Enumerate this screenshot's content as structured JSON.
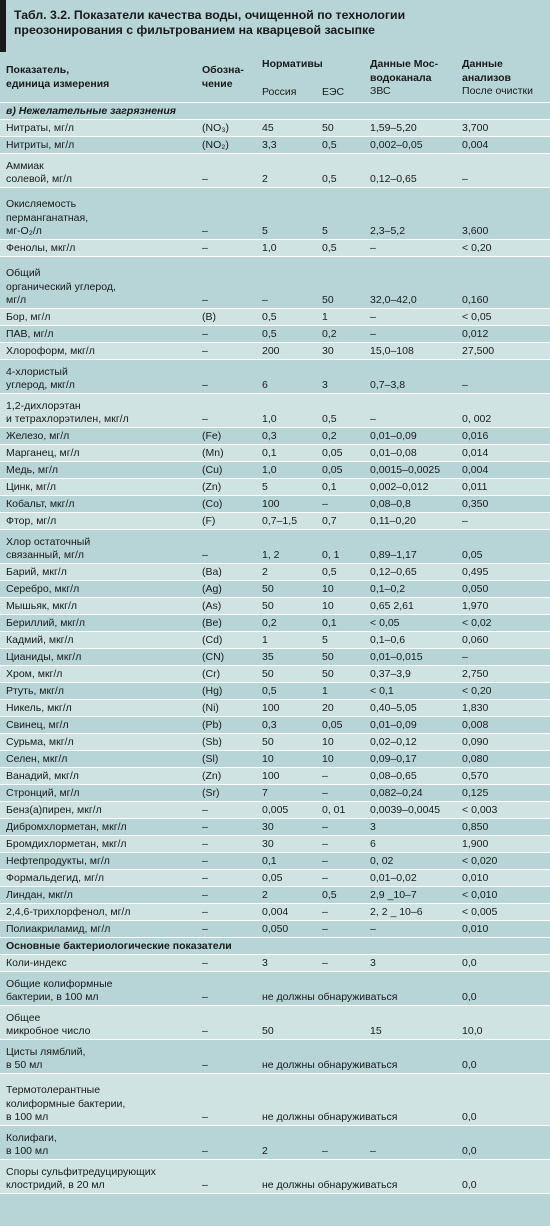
{
  "title": {
    "line1": "Табл. 3.2. Показатели качества воды, очищенной по технологии",
    "line2": "преозонирования с фильтрованием на кварцевой засыпке"
  },
  "header": {
    "col_param_1": "Показатель,",
    "col_param_2": "единица измерения",
    "col_desig_1": "Обозна-",
    "col_desig_2": "чение",
    "col_norms": "Нормативы",
    "col_russia": "Россия",
    "col_ees": "ЕЭС",
    "col_mos_1": "Данные Мос-",
    "col_mos_2": "водоканала",
    "col_mos_3": "ЗВС",
    "col_an_1": "Данные",
    "col_an_2": "анализов",
    "col_an_3": "После очистки"
  },
  "section1": "в) Нежелательные загрязнения",
  "section2": "Основные бактериологические показатели",
  "rows1": [
    {
      "p": [
        "Нитраты, мг/л"
      ],
      "d": "(NO₃)",
      "r": "45",
      "e": "50",
      "m": "1,59–5,20",
      "a": "3,700",
      "h": 17
    },
    {
      "p": [
        "Нитриты, мг/л"
      ],
      "d": "(NO₂)",
      "r": "3,3",
      "e": "0,5",
      "m": "0,002–0,05",
      "a": "0,004",
      "h": 17
    },
    {
      "p": [
        "Аммиак",
        "солевой, мг/л"
      ],
      "d": "–",
      "r": "2",
      "e": "0,5",
      "m": "0,12–0,65",
      "a": "–",
      "h": 34
    },
    {
      "p": [
        "Окисляемость",
        "перманганатная,",
        "мг-O₂/л"
      ],
      "d": "–",
      "r": "5",
      "e": "5",
      "m": "2,3–5,2",
      "a": "3,600",
      "h": 52
    },
    {
      "p": [
        "Фенолы, мкг/л"
      ],
      "d": "–",
      "r": "1,0",
      "e": "0,5",
      "m": "–",
      "a": "< 0,20",
      "h": 17
    },
    {
      "p": [
        "Общий",
        "органический углерод,",
        "мг/л"
      ],
      "d": "–",
      "r": "–",
      "e": "50",
      "m": "32,0–42,0",
      "a": "0,160",
      "h": 52
    },
    {
      "p": [
        "Бор, мг/л"
      ],
      "d": "(B)",
      "r": "0,5",
      "e": "1",
      "m": "–",
      "a": "< 0,05",
      "h": 17
    },
    {
      "p": [
        "ПАВ, мг/л"
      ],
      "d": "–",
      "r": "0,5",
      "e": "0,2",
      "m": "–",
      "a": "0,012",
      "h": 17
    },
    {
      "p": [
        "Хлороформ, мкг/л"
      ],
      "d": "–",
      "r": "200",
      "e": "30",
      "m": "15,0–108",
      "a": "27,500",
      "h": 17
    },
    {
      "p": [
        "4-хлористый",
        "углерод, мкг/л"
      ],
      "d": "–",
      "r": "6",
      "e": "3",
      "m": "0,7–3,8",
      "a": "–",
      "h": 34
    },
    {
      "p": [
        "1,2-дихлорэтан",
        "и тетрахлорэтилен, мкг/л"
      ],
      "d": "–",
      "r": "1,0",
      "e": "0,5",
      "m": "–",
      "a": "0, 002",
      "h": 34
    },
    {
      "p": [
        "Железо, мг/л"
      ],
      "d": "(Fe)",
      "r": "0,3",
      "e": "0,2",
      "m": "0,01–0,09",
      "a": "0,016",
      "h": 17
    },
    {
      "p": [
        "Марганец, мг/л"
      ],
      "d": "(Mn)",
      "r": "0,1",
      "e": "0,05",
      "m": "0,01–0,08",
      "a": "0,014",
      "h": 17
    },
    {
      "p": [
        "Медь, мг/л"
      ],
      "d": "(Cu)",
      "r": "1,0",
      "e": "0,05",
      "m": "0,0015–0,0025",
      "a": "0,004",
      "h": 17
    },
    {
      "p": [
        "Цинк, мг/л"
      ],
      "d": "(Zn)",
      "r": "5",
      "e": "0,1",
      "m": "0,002–0,012",
      "a": "0,011",
      "h": 17
    },
    {
      "p": [
        "Кобальт, мкг/л"
      ],
      "d": "(Co)",
      "r": "100",
      "e": "–",
      "m": "0,08–0,8",
      "a": "0,350",
      "h": 17
    },
    {
      "p": [
        "Фтор, мг/л"
      ],
      "d": "(F)",
      "r": "0,7–1,5",
      "e": "0,7",
      "m": "0,11–0,20",
      "a": "–",
      "h": 17
    },
    {
      "p": [
        "Хлор остаточный",
        "связанный, мг/л"
      ],
      "d": "–",
      "r": "1, 2",
      "e": "0, 1",
      "m": "0,89–1,17",
      "a": "0,05",
      "h": 34
    },
    {
      "p": [
        "Барий, мкг/л"
      ],
      "d": "(Ba)",
      "r": "2",
      "e": "0,5",
      "m": "0,12–0,65",
      "a": "0,495",
      "h": 17
    },
    {
      "p": [
        "Серебро, мкг/л"
      ],
      "d": "(Ag)",
      "r": "50",
      "e": "10",
      "m": "0,1–0,2",
      "a": "0,050",
      "h": 17
    },
    {
      "p": [
        "Мышьяк, мкг/л"
      ],
      "d": "(As)",
      "r": "50",
      "e": "10",
      "m": "0,65 2,61",
      "a": "1,970",
      "h": 17
    },
    {
      "p": [
        "Бериллий, мкг/л"
      ],
      "d": "(Be)",
      "r": "0,2",
      "e": "0,1",
      "m": "< 0,05",
      "a": "< 0,02",
      "h": 17
    },
    {
      "p": [
        "Кадмий, мкг/л"
      ],
      "d": "(Cd)",
      "r": "1",
      "e": "5",
      "m": "0,1–0,6",
      "a": "0,060",
      "h": 17
    },
    {
      "p": [
        "Цианиды, мкг/л"
      ],
      "d": "(CN)",
      "r": "35",
      "e": "50",
      "m": "0,01–0,015",
      "a": "–",
      "h": 17
    },
    {
      "p": [
        "Хром, мкг/л"
      ],
      "d": "(Cr)",
      "r": "50",
      "e": "50",
      "m": "0,37–3,9",
      "a": "2,750",
      "h": 17
    },
    {
      "p": [
        "Ртуть, мкг/л"
      ],
      "d": "(Hg)",
      "r": "0,5",
      "e": "1",
      "m": "< 0,1",
      "a": "< 0,20",
      "h": 17
    },
    {
      "p": [
        "Никель, мкг/л"
      ],
      "d": "(Ni)",
      "r": "100",
      "e": "20",
      "m": "0,40–5,05",
      "a": "1,830",
      "h": 17
    },
    {
      "p": [
        "Свинец, мг/л"
      ],
      "d": "(Pb)",
      "r": "0,3",
      "e": "0,05",
      "m": "0,01–0,09",
      "a": "0,008",
      "h": 17
    },
    {
      "p": [
        "Сурьма, мкг/л"
      ],
      "d": "(Sb)",
      "r": "50",
      "e": "10",
      "m": "0,02–0,12",
      "a": "0,090",
      "h": 17
    },
    {
      "p": [
        "Селен, мкг/л"
      ],
      "d": "(Sl)",
      "r": "10",
      "e": "10",
      "m": "0,09–0,17",
      "a": "0,080",
      "h": 17
    },
    {
      "p": [
        "Ванадий, мкг/л"
      ],
      "d": "(Zn)",
      "r": "100",
      "e": "–",
      "m": "0,08–0,65",
      "a": "0,570",
      "h": 17
    },
    {
      "p": [
        "Стронций, мг/л"
      ],
      "d": "(Sr)",
      "r": "7",
      "e": "–",
      "m": "0,082–0,24",
      "a": "0,125",
      "h": 17
    },
    {
      "p": [
        "Бенз(а)пирен, мкг/л"
      ],
      "d": "–",
      "r": "0,005",
      "e": "0, 01",
      "m": "0,0039–0,0045",
      "a": "< 0,003",
      "h": 17
    },
    {
      "p": [
        "Дибромхлорметан, мкг/л"
      ],
      "d": "–",
      "r": "30",
      "e": "–",
      "m": "3",
      "a": "0,850",
      "h": 17
    },
    {
      "p": [
        "Бромдихлорметан, мкг/л"
      ],
      "d": "–",
      "r": "30",
      "e": "–",
      "m": "6",
      "a": "1,900",
      "h": 17
    },
    {
      "p": [
        "Нефтепродукты, мг/л"
      ],
      "d": "–",
      "r": "0,1",
      "e": "–",
      "m": "0, 02",
      "a": "< 0,020",
      "h": 17
    },
    {
      "p": [
        "Формальдегид, мг/л"
      ],
      "d": "–",
      "r": "0,05",
      "e": "–",
      "m": "0,01–0,02",
      "a": "0,010",
      "h": 17
    },
    {
      "p": [
        "Линдан, мкг/л"
      ],
      "d": "–",
      "r": "2",
      "e": "0,5",
      "m": "2,9 _10–7",
      "a": "< 0,010",
      "h": 17
    },
    {
      "p": [
        "2,4,6-трихлорфенол, мг/л"
      ],
      "d": "–",
      "r": "0,004",
      "e": "–",
      "m": "2, 2 _ 10–6",
      "a": "< 0,005",
      "h": 17
    },
    {
      "p": [
        "Полиакриламид, мг/л"
      ],
      "d": "–",
      "r": "0,050",
      "e": "–",
      "m": "–",
      "a": "0,010",
      "h": 17
    }
  ],
  "rows2": [
    {
      "p": [
        "Коли-индекс"
      ],
      "d": "–",
      "r": "3",
      "e": "–",
      "m": "3",
      "a": "0,0",
      "h": 17
    },
    {
      "p": [
        "Общие колиформные",
        "бактерии, в 100 мл"
      ],
      "d": "–",
      "span": "не должны обнаруживаться",
      "a": "0,0",
      "h": 34
    },
    {
      "p": [
        "Общее",
        "микробное число"
      ],
      "d": "–",
      "r": "50",
      "e": "",
      "m": "15",
      "a": "10,0",
      "h": 34
    },
    {
      "p": [
        "Цисты лямблий,",
        "в 50 мл"
      ],
      "d": "–",
      "span": "не должны обнаруживаться",
      "a": "0,0",
      "h": 34
    },
    {
      "p": [
        "Термотолерантные",
        "колиформные бактерии,",
        "в 100 мл"
      ],
      "d": "–",
      "span": "не должны обнаруживаться",
      "a": "0,0",
      "h": 52
    },
    {
      "p": [
        "Колифаги,",
        "в 100 мл"
      ],
      "d": "–",
      "r": "2",
      "e": "–",
      "m": "–",
      "a": "0,0",
      "h": 34
    },
    {
      "p": [
        "Споры сульфитредуцирующих",
        "клостридий, в 20 мл"
      ],
      "d": "–",
      "span": "не должны обнаруживаться",
      "a": "0,0",
      "h": 34
    }
  ]
}
